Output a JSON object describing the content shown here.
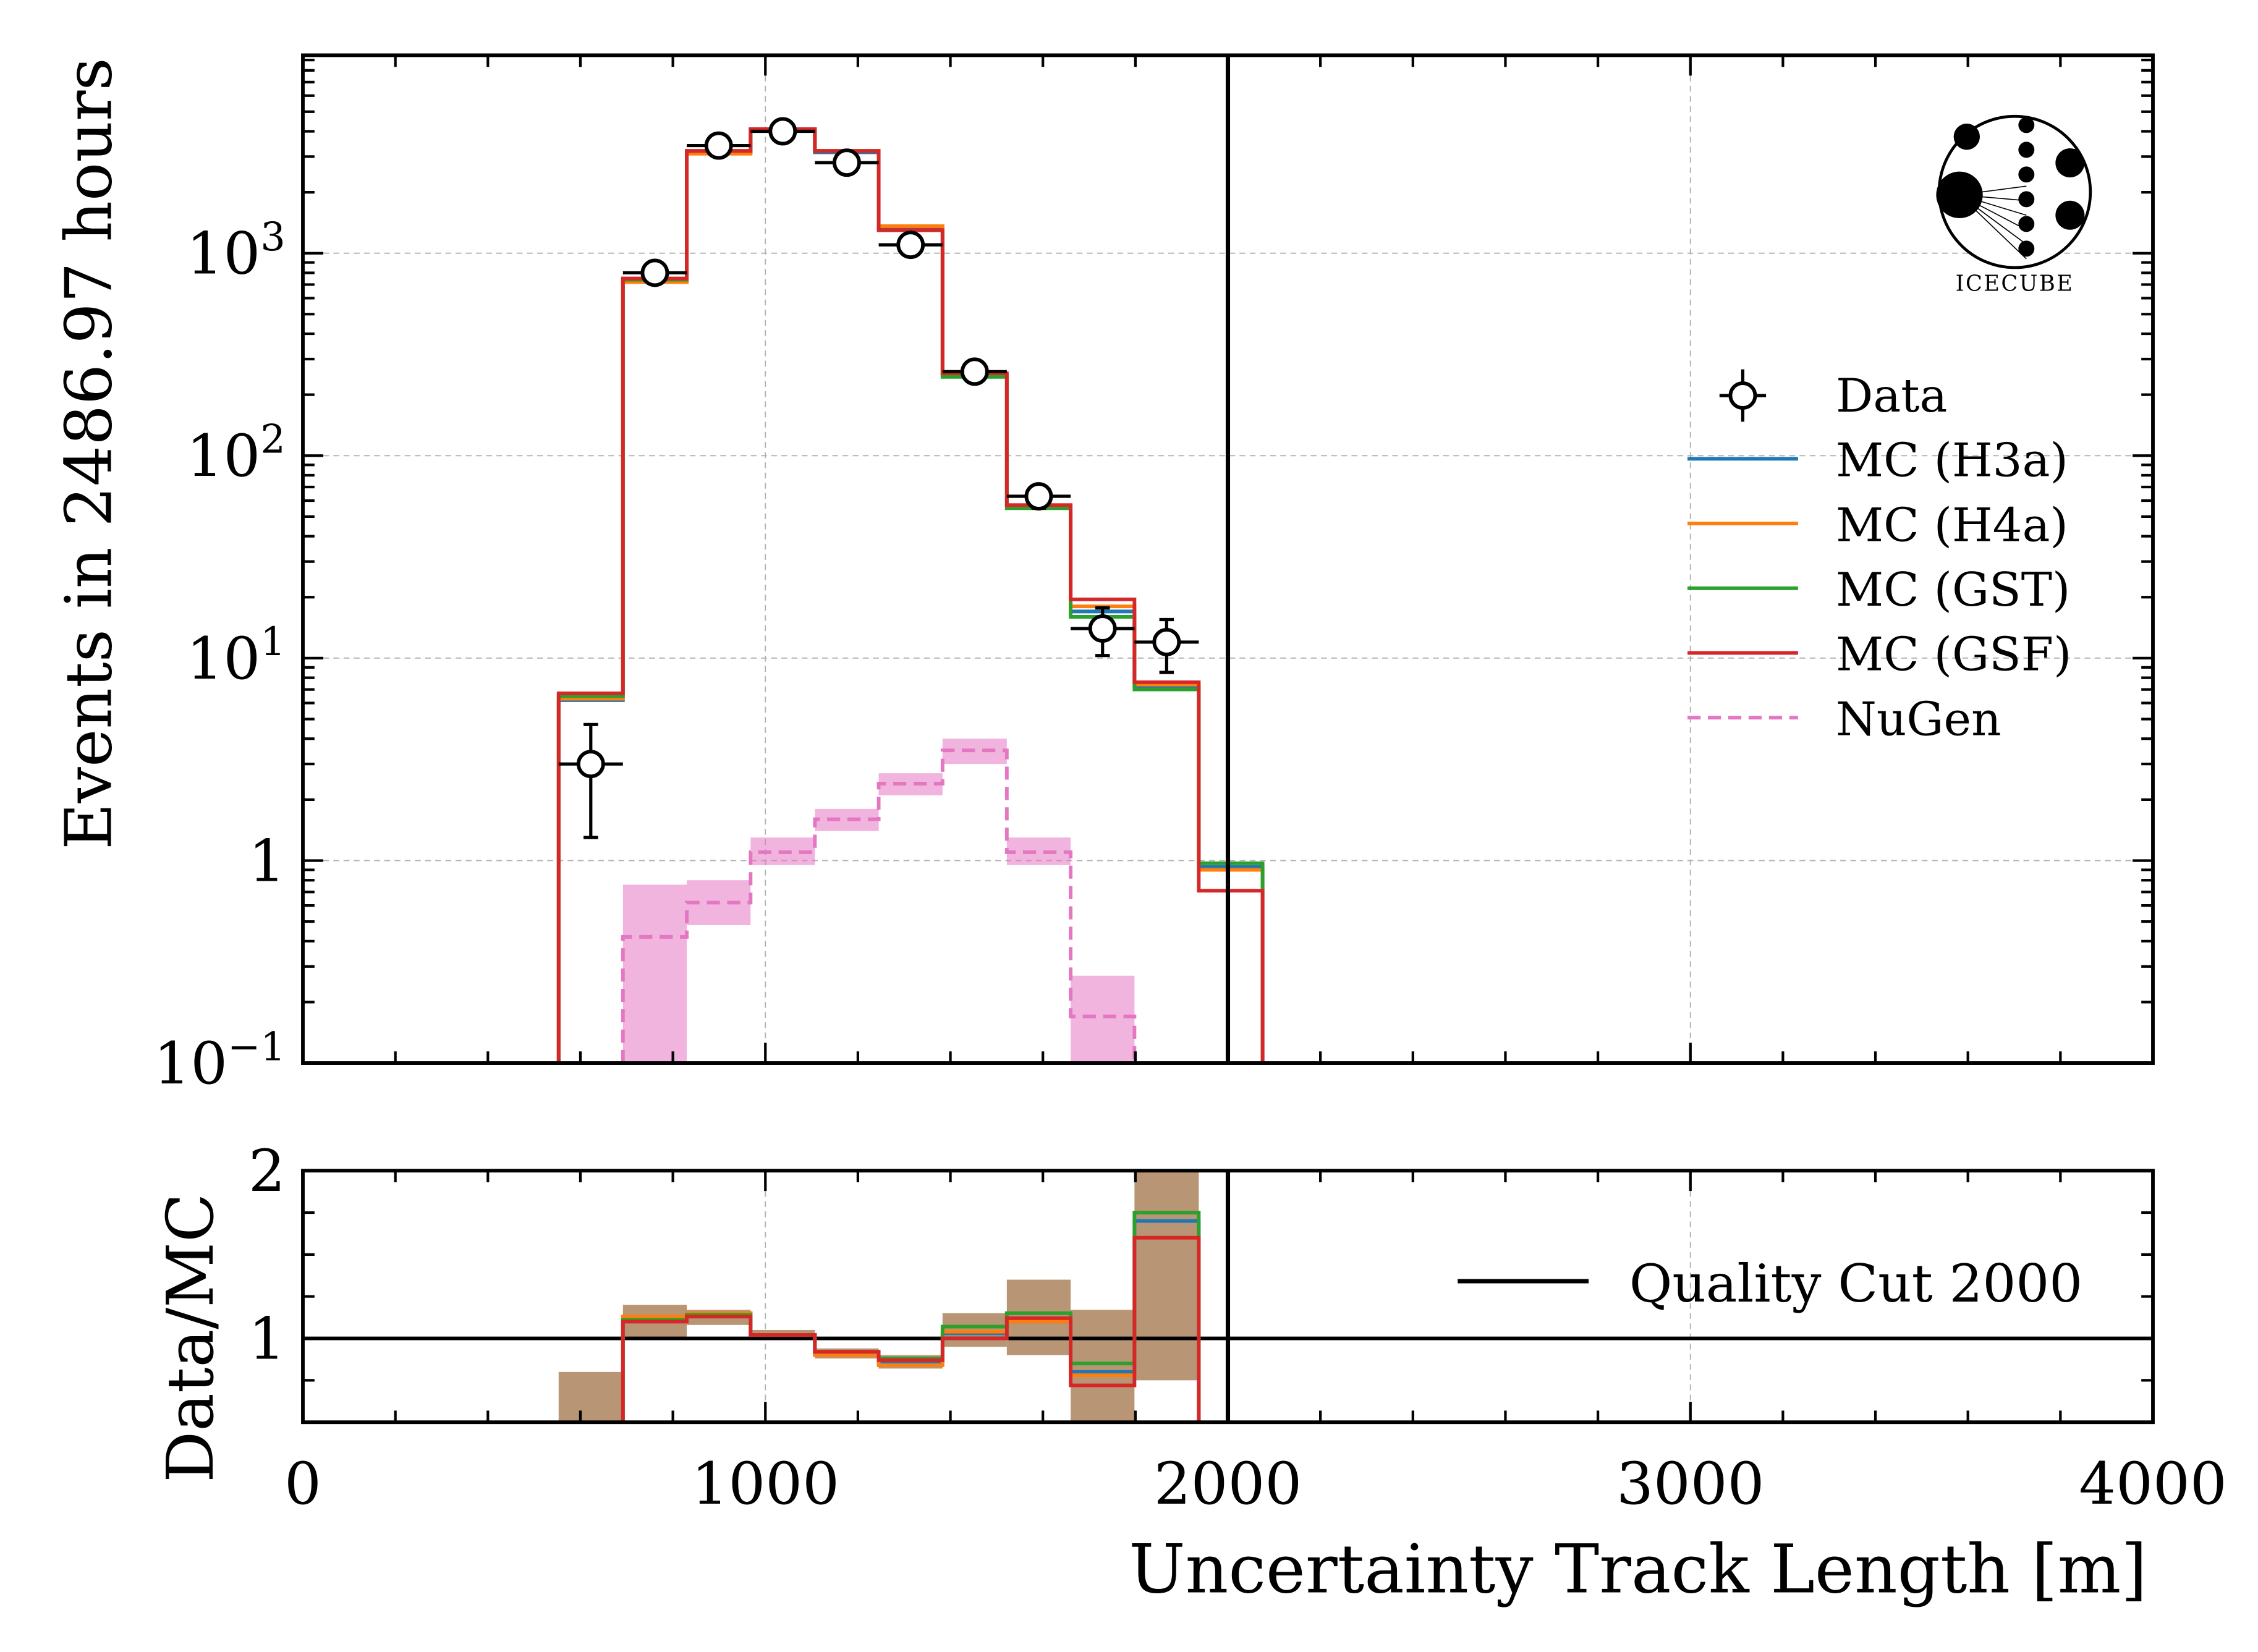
{
  "chart_data": {
    "type": "histogram",
    "top_panel": {
      "ylabel": "Events in 2486.97 hours",
      "yscale": "log",
      "ylim": [
        0.1,
        9500
      ],
      "yticks": [
        "10^-1",
        "1",
        "10^1",
        "10^2",
        "10^3"
      ],
      "grid": true
    },
    "ratio_panel": {
      "ylabel": "Data/MC",
      "ylim": [
        0.5,
        2
      ],
      "yticks": [
        "1",
        "2"
      ],
      "grid": true
    },
    "xlabel": "Uncertainty Track Length [m]",
    "xlim": [
      0,
      4000
    ],
    "xticks": [
      "0",
      "1000",
      "2000",
      "3000",
      "4000"
    ],
    "bin_edges": [
      553,
      692,
      830,
      968,
      1107,
      1245,
      1383,
      1522,
      1660,
      1798,
      1937,
      2075
    ],
    "data": {
      "name": "Data",
      "values": [
        3,
        800,
        3400,
        4000,
        2800,
        1100,
        260,
        63,
        14,
        12
      ],
      "yerr": [
        1.7,
        28,
        58,
        63,
        53,
        33,
        16,
        8,
        3.7,
        3.5
      ]
    },
    "series": [
      {
        "name": "MC (H3a)",
        "color": "#1f77b4",
        "values": [
          6.2,
          730,
          3150,
          4050,
          3150,
          1310,
          250,
          56,
          17,
          7.2,
          0.93
        ],
        "ratio": [
          null,
          1.12,
          1.15,
          1.02,
          0.91,
          0.86,
          1.03,
          1.1,
          0.8,
          1.7
        ]
      },
      {
        "name": "MC (H4a)",
        "color": "#ff7f0e",
        "values": [
          6.3,
          720,
          3100,
          4080,
          3200,
          1360,
          250,
          57,
          18,
          7.4,
          0.9
        ],
        "ratio": [
          null,
          1.13,
          1.15,
          1.02,
          0.9,
          0.84,
          1.04,
          1.1,
          0.78,
          1.6
        ]
      },
      {
        "name": "MC (GST)",
        "color": "#2ca02c",
        "values": [
          6.5,
          740,
          3200,
          4100,
          3200,
          1300,
          245,
          55,
          16,
          7.0,
          0.97
        ],
        "ratio": [
          null,
          1.11,
          1.14,
          1.02,
          0.92,
          0.88,
          1.07,
          1.15,
          0.85,
          1.75
        ]
      },
      {
        "name": "MC (GSF)",
        "color": "#d62728",
        "values": [
          6.7,
          750,
          3200,
          4100,
          3200,
          1300,
          255,
          57,
          19.5,
          7.6,
          0.71
        ],
        "ratio": [
          null,
          1.1,
          1.13,
          1.02,
          0.92,
          0.87,
          1.0,
          1.12,
          0.72,
          1.6
        ]
      }
    ],
    "nugen": {
      "name": "NuGen",
      "color": "#e377c2",
      "values": [
        null,
        0.42,
        0.62,
        1.1,
        1.6,
        2.4,
        3.5,
        1.1,
        0.17,
        null,
        null
      ],
      "band": [
        null,
        [
          0.1,
          0.76
        ],
        [
          0.48,
          0.8
        ],
        [
          0.95,
          1.3
        ],
        [
          1.4,
          1.8
        ],
        [
          2.1,
          2.7
        ],
        [
          3.0,
          4.0
        ],
        [
          0.95,
          1.3
        ],
        [
          0.1,
          0.27
        ],
        null,
        null
      ]
    },
    "ratio_band": [
      [
        0.5,
        0.8
      ],
      [
        1.0,
        1.2
      ],
      [
        1.08,
        1.17
      ],
      [
        1.0,
        1.05
      ],
      [
        0.88,
        0.94
      ],
      [
        0.82,
        0.9
      ],
      [
        0.95,
        1.15
      ],
      [
        0.9,
        1.35
      ],
      [
        0.5,
        1.17
      ],
      [
        0.75,
        2.0
      ]
    ],
    "quality_cut": {
      "x": 2000,
      "label": "Quality Cut 2000"
    },
    "legend_placement": "right",
    "logo_text": "IceCube"
  }
}
